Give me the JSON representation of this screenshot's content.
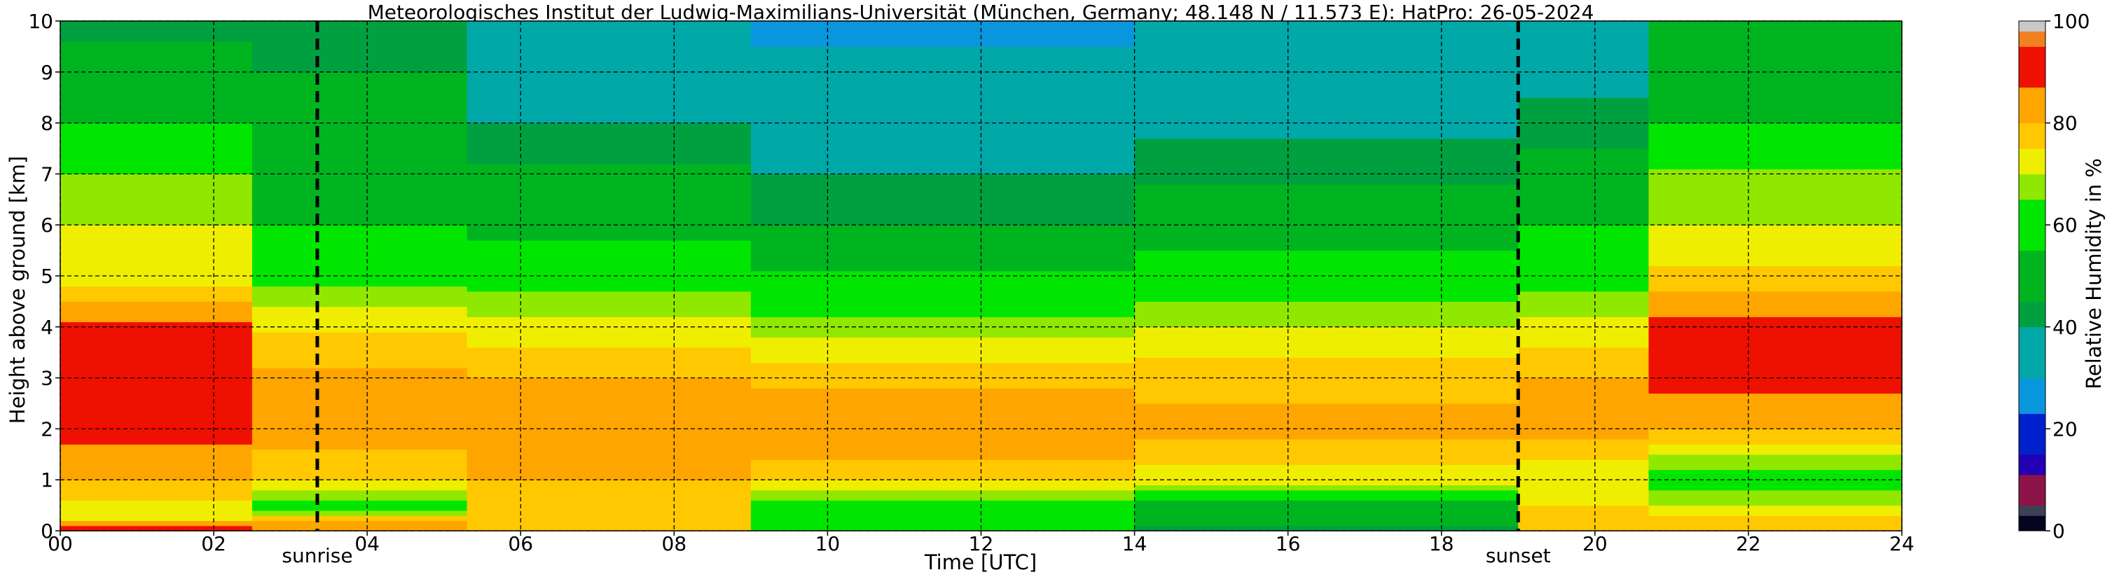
{
  "chart_data": {
    "type": "heatmap",
    "title": "Meteorologisches Institut der Ludwig-Maximilians-Universität (München, Germany; 48.148 N / 11.573 E):    HatPro: 26-05-2024",
    "xlabel": "Time [UTC]",
    "ylabel": "Height above ground [km]",
    "colorbar_label": "Relative Humidity in %",
    "xlim": [
      0,
      24
    ],
    "ylim": [
      0,
      10
    ],
    "x_tick_labels": [
      "00",
      "02",
      "04",
      "06",
      "08",
      "10",
      "12",
      "14",
      "16",
      "18",
      "20",
      "22",
      "24"
    ],
    "y_tick_labels": [
      "0",
      "1",
      "2",
      "3",
      "4",
      "5",
      "6",
      "7",
      "8",
      "9",
      "10"
    ],
    "colorbar_ticks": [
      "0",
      "20",
      "40",
      "60",
      "80",
      "100"
    ],
    "colorbar_range": [
      0,
      100
    ],
    "grid": true,
    "grid_style": "dashed",
    "annotations": [
      {
        "label": "sunrise",
        "x": 3.35
      },
      {
        "label": "sunset",
        "x": 19.0
      }
    ],
    "colormap": [
      {
        "from": 0,
        "to": 3,
        "color": "#050520"
      },
      {
        "from": 3,
        "to": 5,
        "color": "#404055"
      },
      {
        "from": 5,
        "to": 11,
        "color": "#8c1448"
      },
      {
        "from": 11,
        "to": 15,
        "color": "#2200b4"
      },
      {
        "from": 15,
        "to": 23,
        "color": "#0020cc"
      },
      {
        "from": 23,
        "to": 30,
        "color": "#0a96dc"
      },
      {
        "from": 30,
        "to": 40,
        "color": "#00a8a8"
      },
      {
        "from": 40,
        "to": 45,
        "color": "#00a040"
      },
      {
        "from": 45,
        "to": 55,
        "color": "#00b420"
      },
      {
        "from": 55,
        "to": 65,
        "color": "#00e600"
      },
      {
        "from": 65,
        "to": 70,
        "color": "#90e800"
      },
      {
        "from": 70,
        "to": 75,
        "color": "#f0ee00"
      },
      {
        "from": 75,
        "to": 80,
        "color": "#ffc800"
      },
      {
        "from": 80,
        "to": 87,
        "color": "#ffa500"
      },
      {
        "from": 87,
        "to": 95,
        "color": "#ee1000"
      },
      {
        "from": 95,
        "to": 98,
        "color": "#f08020"
      },
      {
        "from": 98,
        "to": 100,
        "color": "#c8c8c8"
      }
    ],
    "humidity_profiles": [
      {
        "time_range": [
          0,
          2.5
        ],
        "levels": [
          {
            "height": 0.0,
            "rh": 92
          },
          {
            "height": 0.3,
            "rh": 70
          },
          {
            "height": 1.0,
            "rh": 80
          },
          {
            "height": 2.0,
            "rh": 90
          },
          {
            "height": 3.0,
            "rh": 91
          },
          {
            "height": 4.0,
            "rh": 89
          },
          {
            "height": 5.0,
            "rh": 72
          },
          {
            "height": 6.0,
            "rh": 70
          },
          {
            "height": 7.0,
            "rh": 65
          },
          {
            "height": 8.0,
            "rh": 55
          },
          {
            "height": 9.0,
            "rh": 50
          },
          {
            "height": 10.0,
            "rh": 42
          }
        ]
      },
      {
        "time_range": [
          2.5,
          5.3
        ],
        "levels": [
          {
            "height": 0.0,
            "rh": 88
          },
          {
            "height": 0.5,
            "rh": 62
          },
          {
            "height": 1.0,
            "rh": 76
          },
          {
            "height": 2.0,
            "rh": 83
          },
          {
            "height": 3.0,
            "rh": 82
          },
          {
            "height": 4.0,
            "rh": 74
          },
          {
            "height": 5.0,
            "rh": 63
          },
          {
            "height": 6.0,
            "rh": 55
          },
          {
            "height": 7.0,
            "rh": 50
          },
          {
            "height": 8.0,
            "rh": 48
          },
          {
            "height": 9.0,
            "rh": 45
          },
          {
            "height": 10.0,
            "rh": 42
          }
        ]
      },
      {
        "time_range": [
          5.3,
          9.0
        ],
        "levels": [
          {
            "height": 0.0,
            "rh": 78
          },
          {
            "height": 1.0,
            "rh": 80
          },
          {
            "height": 2.0,
            "rh": 84
          },
          {
            "height": 3.0,
            "rh": 80
          },
          {
            "height": 4.0,
            "rh": 72
          },
          {
            "height": 5.0,
            "rh": 62
          },
          {
            "height": 6.0,
            "rh": 52
          },
          {
            "height": 7.0,
            "rh": 46
          },
          {
            "height": 8.0,
            "rh": 40
          },
          {
            "height": 9.0,
            "rh": 37
          },
          {
            "height": 10.0,
            "rh": 33
          }
        ]
      },
      {
        "time_range": [
          9.0,
          14.0
        ],
        "levels": [
          {
            "height": 0.0,
            "rh": 55
          },
          {
            "height": 0.5,
            "rh": 63
          },
          {
            "height": 1.0,
            "rh": 76
          },
          {
            "height": 2.0,
            "rh": 87
          },
          {
            "height": 3.0,
            "rh": 78
          },
          {
            "height": 4.0,
            "rh": 68
          },
          {
            "height": 5.0,
            "rh": 56
          },
          {
            "height": 6.0,
            "rh": 45
          },
          {
            "height": 7.0,
            "rh": 40
          },
          {
            "height": 8.0,
            "rh": 36
          },
          {
            "height": 9.0,
            "rh": 32
          },
          {
            "height": 10.0,
            "rh": 28
          }
        ]
      },
      {
        "time_range": [
          14.0,
          19.0
        ],
        "levels": [
          {
            "height": 0.0,
            "rh": 44
          },
          {
            "height": 0.5,
            "rh": 52
          },
          {
            "height": 1.0,
            "rh": 72
          },
          {
            "height": 2.0,
            "rh": 82
          },
          {
            "height": 3.0,
            "rh": 78
          },
          {
            "height": 4.0,
            "rh": 70
          },
          {
            "height": 5.0,
            "rh": 60
          },
          {
            "height": 6.0,
            "rh": 50
          },
          {
            "height": 7.0,
            "rh": 44
          },
          {
            "height": 8.0,
            "rh": 38
          },
          {
            "height": 9.0,
            "rh": 34
          },
          {
            "height": 10.0,
            "rh": 30
          }
        ]
      },
      {
        "time_range": [
          19.0,
          20.7
        ],
        "levels": [
          {
            "height": 0.0,
            "rh": 80
          },
          {
            "height": 1.0,
            "rh": 70
          },
          {
            "height": 2.0,
            "rh": 82
          },
          {
            "height": 3.0,
            "rh": 80
          },
          {
            "height": 4.0,
            "rh": 72
          },
          {
            "height": 5.0,
            "rh": 62
          },
          {
            "height": 6.0,
            "rh": 55
          },
          {
            "height": 7.0,
            "rh": 48
          },
          {
            "height": 8.0,
            "rh": 42
          },
          {
            "height": 9.0,
            "rh": 38
          },
          {
            "height": 10.0,
            "rh": 34
          }
        ]
      },
      {
        "time_range": [
          20.7,
          24.0
        ],
        "levels": [
          {
            "height": 0.0,
            "rh": 80
          },
          {
            "height": 1.0,
            "rh": 60
          },
          {
            "height": 2.0,
            "rh": 80
          },
          {
            "height": 3.0,
            "rh": 90
          },
          {
            "height": 4.0,
            "rh": 90
          },
          {
            "height": 5.0,
            "rh": 76
          },
          {
            "height": 6.0,
            "rh": 70
          },
          {
            "height": 7.0,
            "rh": 66
          },
          {
            "height": 8.0,
            "rh": 55
          },
          {
            "height": 9.0,
            "rh": 50
          },
          {
            "height": 10.0,
            "rh": 48
          }
        ]
      }
    ]
  }
}
